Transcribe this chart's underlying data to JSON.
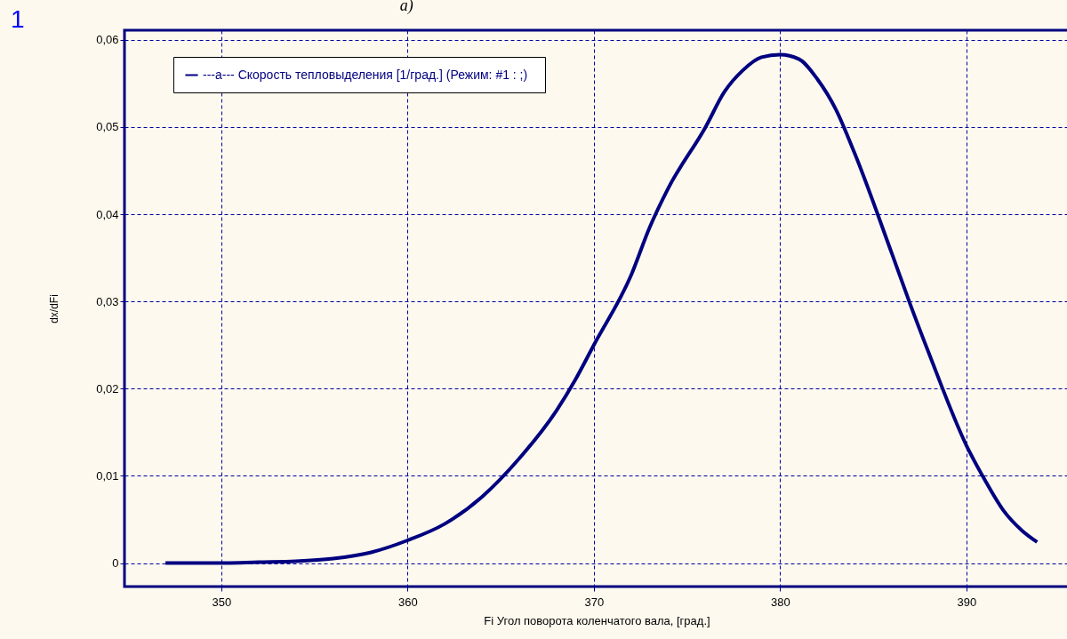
{
  "chart_data": {
    "type": "line",
    "title": "a)",
    "xlabel": "Fi          Угол поворота коленчатого вала, [град.]",
    "ylabel": "dx/dFi",
    "annotations": [
      "1"
    ],
    "x": [
      347,
      348,
      350,
      352,
      354,
      356,
      358,
      360,
      362,
      364,
      366,
      368,
      369,
      370,
      372,
      373,
      374,
      376,
      377,
      378,
      379,
      380,
      381,
      382,
      383,
      384,
      386,
      387,
      388,
      390,
      391,
      392,
      393,
      393.8
    ],
    "series": [
      {
        "name": "---a---   Скорость тепловыделения [1/град.] (Режим: #1 : ;)",
        "color": "#000080",
        "values": [
          0,
          0,
          0,
          0.0001,
          0.0002,
          0.0005,
          0.0012,
          0.0026,
          0.0045,
          0.0076,
          0.012,
          0.0175,
          0.021,
          0.025,
          0.033,
          0.0385,
          0.043,
          0.05,
          0.054,
          0.0565,
          0.058,
          0.0583,
          0.0578,
          0.0555,
          0.052,
          0.047,
          0.0355,
          0.0296,
          0.024,
          0.0135,
          0.0095,
          0.006,
          0.0037,
          0.0024
        ]
      }
    ],
    "xlim": [
      344.8,
      395.5
    ],
    "xticks": [
      350,
      360,
      370,
      380,
      390
    ],
    "ylim": [
      -0.0027,
      0.0611
    ],
    "yticks": [
      0,
      {
        "value": 0.01,
        "label": "0,01"
      },
      {
        "value": 0.02,
        "label": "0,02"
      },
      {
        "value": 0.03,
        "label": "0,03"
      },
      {
        "value": 0.04,
        "label": "0,04"
      },
      {
        "value": 0.05,
        "label": "0,05"
      },
      {
        "value": 0.06,
        "label": "0,06"
      }
    ],
    "grid": true,
    "legend": "top left",
    "marker": "none",
    "line_style": "solid"
  }
}
